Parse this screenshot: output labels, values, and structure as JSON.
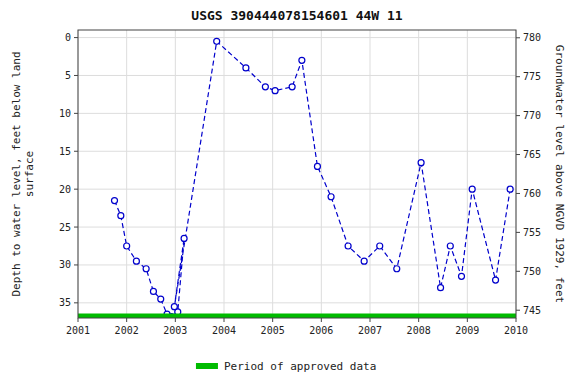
{
  "chart_data": {
    "type": "line",
    "title": "USGS 390444078154601 44W 11",
    "y_label": "Depth to water level, feet below land\nsurface",
    "y2_label": "Groundwater level above NGVD 1929, feet",
    "xlim": [
      2001,
      2010
    ],
    "xticks": [
      2001,
      2002,
      2003,
      2004,
      2005,
      2006,
      2007,
      2008,
      2009,
      2010
    ],
    "ylim": [
      37,
      -1
    ],
    "yticks": [
      0,
      5,
      10,
      15,
      20,
      25,
      30,
      35
    ],
    "y2lim": [
      744,
      781
    ],
    "y2ticks": [
      745,
      750,
      755,
      760,
      765,
      770,
      775,
      780
    ],
    "grid": true,
    "legend": "bottom",
    "x": [
      2001.75,
      2001.88,
      2002.0,
      2002.2,
      2002.4,
      2002.55,
      2002.7,
      2002.83,
      2002.92,
      2003.05,
      2003.18,
      2002.98,
      2003.85,
      2004.45,
      2004.85,
      2005.05,
      2005.4,
      2005.6,
      2005.92,
      2006.2,
      2006.55,
      2006.88,
      2007.2,
      2007.55,
      2008.05,
      2008.45,
      2008.65,
      2008.88,
      2009.1,
      2009.58,
      2009.88
    ],
    "series": [
      {
        "color": "#0000cc",
        "marker": "circle",
        "line_style": "dashed",
        "values": [
          21.5,
          23.5,
          27.5,
          29.5,
          30.5,
          33.5,
          34.5,
          36.5,
          36.8,
          36.2,
          26.5,
          35.5,
          0.5,
          4.0,
          6.5,
          7.0,
          6.5,
          3.0,
          17.0,
          21.0,
          27.5,
          29.5,
          27.5,
          30.5,
          16.5,
          33.0,
          27.5,
          31.5,
          20.0,
          32.0,
          20.0
        ]
      },
      {
        "name": "Period of approved data",
        "type": "band",
        "color": "#00bb00",
        "x": [
          2001,
          2010
        ],
        "values": [
          37,
          37
        ]
      }
    ]
  }
}
